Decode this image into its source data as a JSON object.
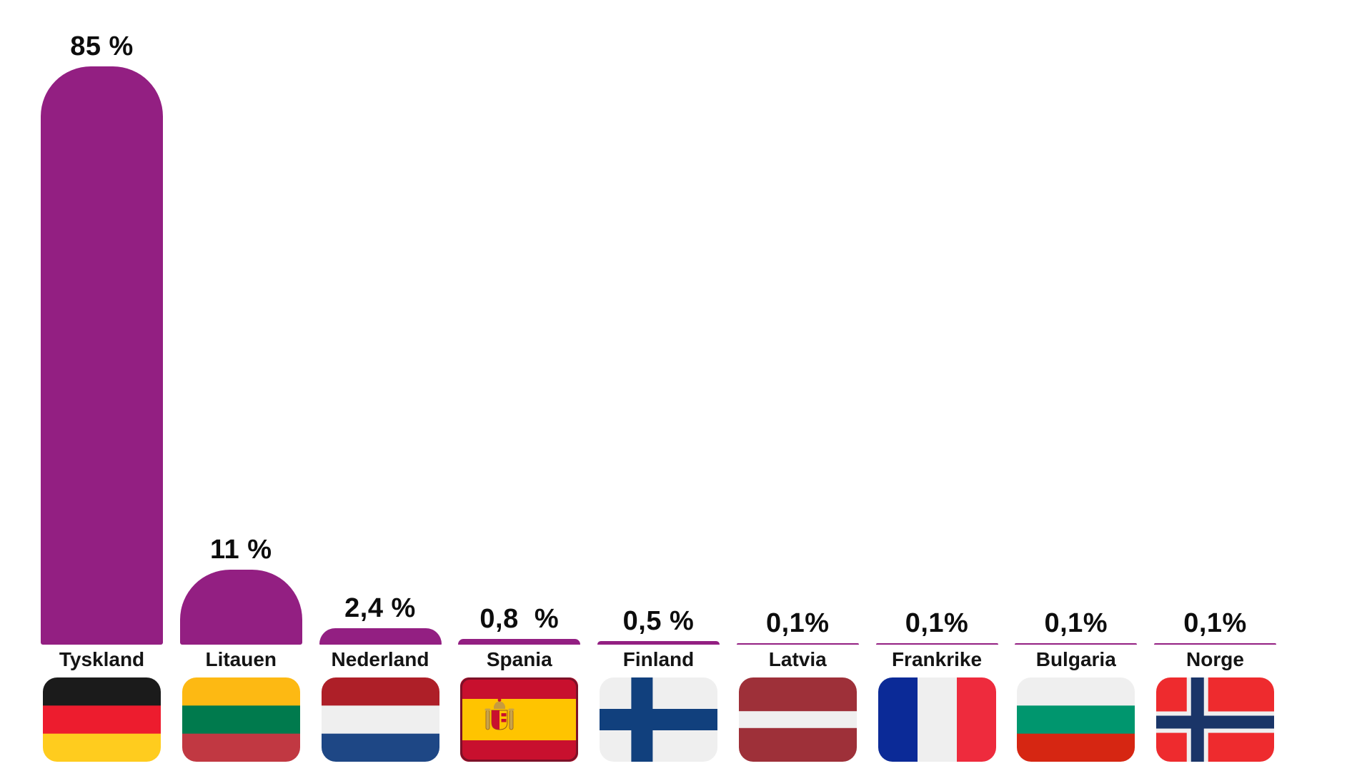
{
  "chart_data": {
    "type": "bar",
    "orientation": "vertical",
    "title": "",
    "xlabel": "",
    "ylabel": "",
    "unit": "%",
    "grid": false,
    "legend": false,
    "ylim": [
      0,
      85
    ],
    "bar_color": "#931F82",
    "text_color": "#0d0d0d",
    "categories": [
      "Tyskland",
      "Litauen",
      "Nederland",
      "Spania",
      "Finland",
      "Latvia",
      "Frankrike",
      "Bulgaria",
      "Norge"
    ],
    "values": [
      85,
      11,
      2.4,
      0.8,
      0.5,
      0.1,
      0.1,
      0.1,
      0.1
    ],
    "value_labels": [
      "85 %",
      "11 %",
      "2,4 %",
      "0,8  %",
      "0,5 %",
      "0,1%",
      "0,1%",
      "0,1%",
      "0,1%"
    ],
    "items": [
      {
        "id": "tyskland",
        "country": "Tyskland",
        "value": 85,
        "value_label": "85 %",
        "flag": {
          "name": "flag-germany-icon",
          "type": "h",
          "colors": [
            "#1B1B1B",
            "#ED1C2E",
            "#FFCC1E"
          ],
          "weights": [
            1,
            1,
            1
          ]
        }
      },
      {
        "id": "litauen",
        "country": "Litauen",
        "value": 11,
        "value_label": "11 %",
        "flag": {
          "name": "flag-lithuania-icon",
          "type": "h",
          "colors": [
            "#FDB913",
            "#007A4D",
            "#C13842"
          ],
          "weights": [
            1,
            1,
            1
          ]
        }
      },
      {
        "id": "nederland",
        "country": "Nederland",
        "value": 2.4,
        "value_label": "2,4 %",
        "flag": {
          "name": "flag-netherlands-icon",
          "type": "h",
          "colors": [
            "#AE1F28",
            "#EFEFEF",
            "#1E4785"
          ],
          "weights": [
            1,
            1,
            1
          ]
        }
      },
      {
        "id": "spania",
        "country": "Spania",
        "value": 0.8,
        "value_label": "0,8  %",
        "flag": {
          "name": "flag-spain-icon",
          "type": "spain",
          "red": "#C8102E",
          "yellow": "#FFC400",
          "border": "#7D1128",
          "gold": "#C69C3F",
          "pillar": "#C9A449",
          "outline": "#8E5A22"
        }
      },
      {
        "id": "finland",
        "country": "Finland",
        "value": 0.5,
        "value_label": "0,5 %",
        "flag": {
          "name": "flag-finland-icon",
          "type": "cross",
          "bg": "#EFEFEF",
          "cross": "#11407D",
          "cx": 0.36,
          "cy": 0.5,
          "cw": 30
        }
      },
      {
        "id": "latvia",
        "country": "Latvia",
        "value": 0.1,
        "value_label": "0,1%",
        "flag": {
          "name": "flag-latvia-icon",
          "type": "h",
          "colors": [
            "#9E3039",
            "#EFEFEF",
            "#9E3039"
          ],
          "weights": [
            2,
            1,
            2
          ]
        }
      },
      {
        "id": "frankrike",
        "country": "Frankrike",
        "value": 0.1,
        "value_label": "0,1%",
        "flag": {
          "name": "flag-france-icon",
          "type": "v",
          "colors": [
            "#0B2A97",
            "#EFEFEF",
            "#EE2B3D"
          ],
          "weights": [
            1,
            1,
            1
          ]
        }
      },
      {
        "id": "bulgaria",
        "country": "Bulgaria",
        "value": 0.1,
        "value_label": "0,1%",
        "flag": {
          "name": "flag-bulgaria-icon",
          "type": "h",
          "colors": [
            "#EFEFEF",
            "#00966E",
            "#D62612"
          ],
          "weights": [
            1,
            1,
            1
          ]
        }
      },
      {
        "id": "norge",
        "country": "Norge",
        "value": 0.1,
        "value_label": "0,1%",
        "flag": {
          "name": "flag-norway-icon",
          "type": "cross",
          "bg": "#EE2B2E",
          "cross": "#1A3568",
          "outline": "#EFEFEF",
          "cx": 0.35,
          "cy": 0.53,
          "cw": 18,
          "ow": 30
        }
      }
    ]
  }
}
